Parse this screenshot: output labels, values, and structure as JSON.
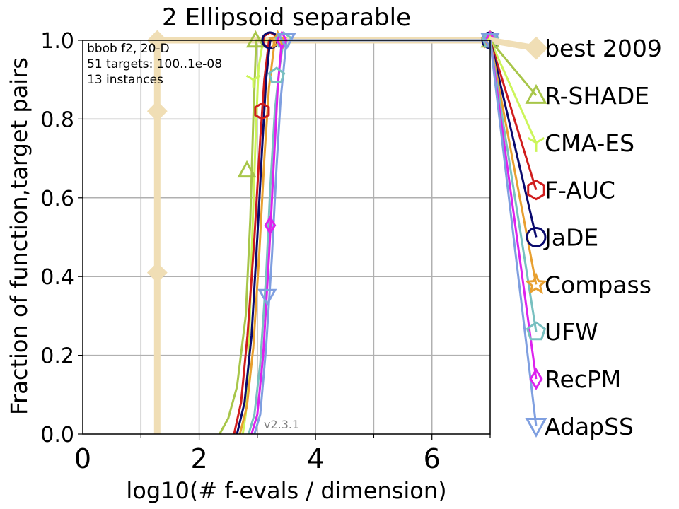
{
  "chart_data": {
    "type": "line",
    "title": "2 Ellipsoid separable",
    "xlabel": "log10(# f-evals / dimension)",
    "ylabel": "Fraction of function,target pairs",
    "xlim": [
      0,
      7
    ],
    "ylim": [
      0,
      1
    ],
    "xticks": [
      {
        "v": 0,
        "label": "0"
      },
      {
        "v": 2,
        "label": "2"
      },
      {
        "v": 4,
        "label": "4"
      },
      {
        "v": 6,
        "label": "6"
      }
    ],
    "yticks": [
      {
        "v": 0,
        "label": "0.0"
      },
      {
        "v": 0.2,
        "label": "0.2"
      },
      {
        "v": 0.4,
        "label": "0.4"
      },
      {
        "v": 0.6,
        "label": "0.6"
      },
      {
        "v": 0.8,
        "label": "0.8"
      },
      {
        "v": 1.0,
        "label": "1.0"
      }
    ],
    "grid": true,
    "info_lines": [
      "bbob f2, 20-D",
      "51 targets: 100..1e-08",
      "13 instances"
    ],
    "version": "v2.3.1",
    "legend_position": "right",
    "series": [
      {
        "name": "best 2009",
        "color": "#f0deb5",
        "marker": "diamond",
        "x": [
          1.28,
          1.28,
          1.28,
          1.28,
          1.28,
          7.0
        ],
        "y": [
          0.0,
          0.41,
          0.82,
          1.0,
          1.0,
          1.0
        ],
        "markers": [
          [
            1.28,
            0.41
          ],
          [
            1.28,
            0.82
          ],
          [
            1.28,
            1.0
          ],
          [
            7.0,
            1.0
          ]
        ],
        "legend_y": 0.98
      },
      {
        "name": "R-SHADE",
        "color": "#a8c64a",
        "marker": "triangle-up",
        "x": [
          2.35,
          2.5,
          2.65,
          2.8,
          2.88,
          2.93,
          2.98,
          7.0
        ],
        "y": [
          0.0,
          0.04,
          0.12,
          0.3,
          0.55,
          0.8,
          1.0,
          1.0
        ],
        "markers": [
          [
            2.82,
            0.67
          ],
          [
            2.97,
            1.0
          ],
          [
            7.0,
            1.0
          ]
        ],
        "legend_y": 0.86
      },
      {
        "name": "CMA-ES",
        "color": "#ccf55a",
        "marker": "tri-down",
        "x": [
          2.75,
          2.8,
          2.85,
          2.9,
          2.97,
          3.02,
          3.1,
          7.0
        ],
        "y": [
          0.0,
          0.05,
          0.18,
          0.45,
          0.75,
          0.93,
          1.0,
          1.0
        ],
        "markers": [
          [
            2.93,
            0.9
          ],
          [
            7.0,
            1.0
          ]
        ],
        "legend_y": 0.74
      },
      {
        "name": "F-AUC",
        "color": "#d01d1d",
        "marker": "hexagon",
        "x": [
          2.6,
          2.72,
          2.83,
          2.95,
          3.05,
          3.12,
          3.2,
          7.0
        ],
        "y": [
          0.0,
          0.08,
          0.25,
          0.5,
          0.75,
          0.9,
          1.0,
          1.0
        ],
        "markers": [
          [
            3.08,
            0.82
          ],
          [
            3.22,
            1.0
          ],
          [
            7.0,
            1.0
          ]
        ],
        "legend_y": 0.62
      },
      {
        "name": "JaDE",
        "color": "#0a0a6e",
        "marker": "circle",
        "x": [
          2.65,
          2.78,
          2.9,
          3.0,
          3.08,
          3.15,
          3.22,
          7.0
        ],
        "y": [
          0.0,
          0.08,
          0.25,
          0.5,
          0.72,
          0.9,
          1.0,
          1.0
        ],
        "markers": [
          [
            3.22,
            1.0
          ],
          [
            7.0,
            1.0
          ]
        ],
        "legend_y": 0.5
      },
      {
        "name": "Compass",
        "color": "#e8a030",
        "marker": "star",
        "x": [
          2.7,
          2.82,
          2.93,
          3.03,
          3.12,
          3.2,
          3.3,
          7.0
        ],
        "y": [
          0.0,
          0.07,
          0.22,
          0.45,
          0.7,
          0.88,
          1.0,
          1.0
        ],
        "markers": [
          [
            3.35,
            1.0
          ],
          [
            7.0,
            1.0
          ]
        ],
        "legend_y": 0.38
      },
      {
        "name": "UFW",
        "color": "#78c0c0",
        "marker": "pentagon",
        "x": [
          2.85,
          2.95,
          3.05,
          3.15,
          3.22,
          3.3,
          3.38,
          3.45,
          7.0
        ],
        "y": [
          0.0,
          0.05,
          0.18,
          0.4,
          0.62,
          0.82,
          0.93,
          1.0,
          1.0
        ],
        "markers": [
          [
            3.33,
            0.91
          ],
          [
            3.45,
            1.0
          ],
          [
            7.0,
            1.0
          ]
        ],
        "legend_y": 0.26
      },
      {
        "name": "RecPM",
        "color": "#dd22ee",
        "marker": "thin-diamond",
        "x": [
          2.9,
          3.0,
          3.1,
          3.2,
          3.28,
          3.35,
          3.42,
          7.0
        ],
        "y": [
          0.0,
          0.05,
          0.2,
          0.45,
          0.68,
          0.88,
          1.0,
          1.0
        ],
        "markers": [
          [
            3.22,
            0.53
          ],
          [
            3.42,
            1.0
          ],
          [
            7.0,
            1.0
          ]
        ],
        "legend_y": 0.14
      },
      {
        "name": "AdapSS",
        "color": "#7f9fe0",
        "marker": "triangle-down",
        "x": [
          2.95,
          3.05,
          3.15,
          3.25,
          3.33,
          3.4,
          3.5,
          7.0
        ],
        "y": [
          0.0,
          0.05,
          0.22,
          0.45,
          0.68,
          0.85,
          1.0,
          1.0
        ],
        "markers": [
          [
            3.17,
            0.35
          ],
          [
            3.5,
            1.0
          ],
          [
            7.0,
            1.0
          ]
        ],
        "legend_y": 0.02
      }
    ]
  }
}
